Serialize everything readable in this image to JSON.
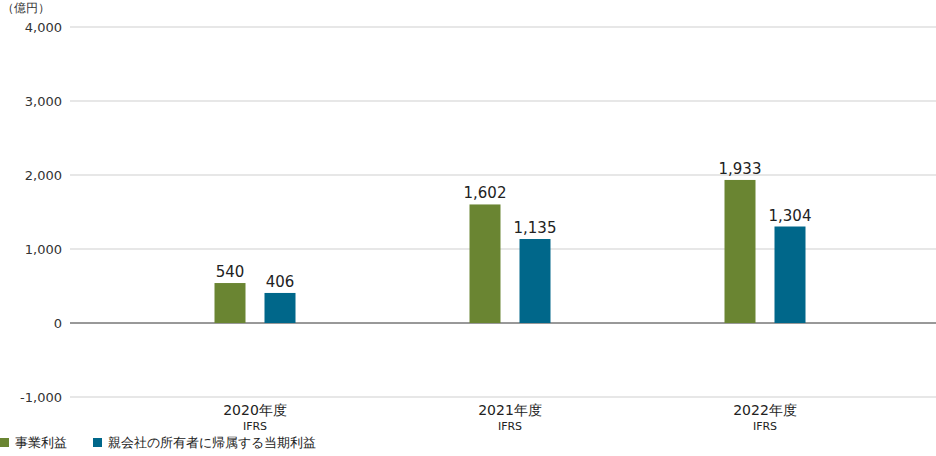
{
  "chart_data": {
    "type": "bar",
    "y_label": "（億円）",
    "categories": [
      "2020年度\nIFRS",
      "2021年度\nIFRS",
      "2022年度\nIFRS"
    ],
    "series": [
      {
        "name": "事業利益",
        "color": "#6a8532",
        "values": [
          540,
          1602,
          1933
        ],
        "value_labels": [
          "540",
          "1,602",
          "1,933"
        ]
      },
      {
        "name": "親会社の所有者に帰属する当期利益",
        "color": "#00678a",
        "values": [
          406,
          1135,
          1304
        ],
        "value_labels": [
          "406",
          "1,135",
          "1,304"
        ]
      }
    ],
    "ylim": [
      -1000,
      4000
    ],
    "yticks": [
      {
        "value": -1000,
        "label": "-1,000"
      },
      0,
      {
        "value": 1000,
        "label": "1,000"
      },
      {
        "value": 2000,
        "label": "2,000"
      },
      {
        "value": 3000,
        "label": "3,000"
      },
      {
        "value": 4000,
        "label": "4,000"
      }
    ],
    "grid": true,
    "data_labels": true,
    "legend": "bottom-left"
  }
}
